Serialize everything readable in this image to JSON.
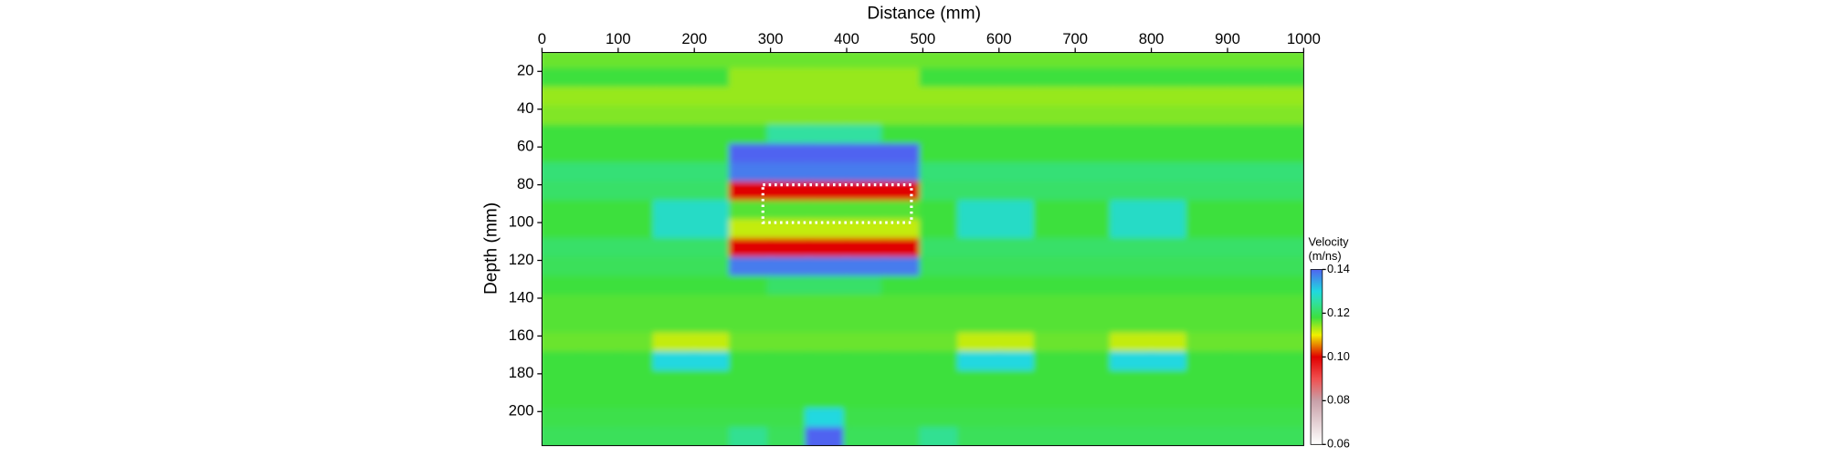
{
  "chart_data": {
    "type": "heatmap",
    "xlabel": "Distance (mm)",
    "ylabel": "Depth (mm)",
    "x": [
      25,
      75,
      125,
      175,
      225,
      275,
      325,
      375,
      425,
      475,
      525,
      575,
      625,
      675,
      725,
      775,
      825,
      875,
      925,
      975
    ],
    "y": [
      15,
      25,
      35,
      45,
      55,
      65,
      75,
      85,
      95,
      105,
      115,
      125,
      135,
      145,
      155,
      165,
      175,
      185,
      195,
      205,
      215
    ],
    "z": [
      [
        0.116,
        0.116,
        0.116,
        0.116,
        0.116,
        0.116,
        0.116,
        0.116,
        0.116,
        0.116,
        0.116,
        0.116,
        0.116,
        0.116,
        0.116,
        0.116,
        0.116,
        0.116,
        0.116,
        0.116
      ],
      [
        0.118,
        0.118,
        0.118,
        0.118,
        0.118,
        0.114,
        0.114,
        0.114,
        0.114,
        0.114,
        0.118,
        0.118,
        0.118,
        0.118,
        0.118,
        0.118,
        0.118,
        0.118,
        0.118,
        0.118
      ],
      [
        0.114,
        0.114,
        0.114,
        0.114,
        0.114,
        0.114,
        0.114,
        0.114,
        0.114,
        0.114,
        0.114,
        0.114,
        0.114,
        0.114,
        0.114,
        0.114,
        0.114,
        0.114,
        0.114,
        0.114
      ],
      [
        0.115,
        0.115,
        0.115,
        0.115,
        0.115,
        0.115,
        0.115,
        0.115,
        0.115,
        0.115,
        0.115,
        0.115,
        0.115,
        0.115,
        0.115,
        0.115,
        0.115,
        0.115,
        0.115,
        0.115
      ],
      [
        0.118,
        0.118,
        0.118,
        0.118,
        0.118,
        0.118,
        0.125,
        0.125,
        0.125,
        0.118,
        0.118,
        0.118,
        0.118,
        0.118,
        0.118,
        0.118,
        0.118,
        0.118,
        0.118,
        0.118
      ],
      [
        0.118,
        0.118,
        0.118,
        0.118,
        0.118,
        0.14,
        0.14,
        0.14,
        0.14,
        0.14,
        0.118,
        0.118,
        0.118,
        0.118,
        0.118,
        0.118,
        0.118,
        0.118,
        0.118,
        0.118
      ],
      [
        0.122,
        0.122,
        0.122,
        0.122,
        0.122,
        0.138,
        0.138,
        0.138,
        0.138,
        0.138,
        0.122,
        0.122,
        0.122,
        0.122,
        0.122,
        0.122,
        0.122,
        0.122,
        0.122,
        0.122
      ],
      [
        0.121,
        0.121,
        0.121,
        0.121,
        0.121,
        0.1,
        0.1,
        0.1,
        0.1,
        0.1,
        0.121,
        0.121,
        0.121,
        0.121,
        0.121,
        0.121,
        0.121,
        0.121,
        0.121,
        0.121
      ],
      [
        0.118,
        0.118,
        0.118,
        0.128,
        0.128,
        0.117,
        0.117,
        0.117,
        0.117,
        0.117,
        0.118,
        0.128,
        0.128,
        0.118,
        0.118,
        0.128,
        0.128,
        0.118,
        0.118,
        0.118
      ],
      [
        0.118,
        0.118,
        0.118,
        0.128,
        0.128,
        0.112,
        0.112,
        0.112,
        0.112,
        0.112,
        0.118,
        0.128,
        0.128,
        0.118,
        0.118,
        0.128,
        0.128,
        0.118,
        0.118,
        0.118
      ],
      [
        0.121,
        0.121,
        0.121,
        0.121,
        0.121,
        0.1,
        0.1,
        0.1,
        0.1,
        0.1,
        0.121,
        0.121,
        0.121,
        0.121,
        0.121,
        0.121,
        0.121,
        0.121,
        0.121,
        0.121
      ],
      [
        0.12,
        0.12,
        0.12,
        0.12,
        0.12,
        0.138,
        0.138,
        0.138,
        0.138,
        0.138,
        0.12,
        0.12,
        0.12,
        0.12,
        0.12,
        0.12,
        0.12,
        0.12,
        0.12,
        0.12
      ],
      [
        0.118,
        0.118,
        0.118,
        0.118,
        0.118,
        0.118,
        0.121,
        0.121,
        0.121,
        0.118,
        0.118,
        0.118,
        0.118,
        0.118,
        0.118,
        0.118,
        0.118,
        0.118,
        0.118,
        0.118
      ],
      [
        0.117,
        0.117,
        0.117,
        0.117,
        0.117,
        0.117,
        0.117,
        0.117,
        0.117,
        0.117,
        0.117,
        0.117,
        0.117,
        0.117,
        0.117,
        0.117,
        0.117,
        0.117,
        0.117,
        0.117
      ],
      [
        0.117,
        0.117,
        0.117,
        0.117,
        0.117,
        0.117,
        0.117,
        0.117,
        0.117,
        0.117,
        0.117,
        0.117,
        0.117,
        0.117,
        0.117,
        0.117,
        0.117,
        0.117,
        0.117,
        0.117
      ],
      [
        0.116,
        0.116,
        0.116,
        0.112,
        0.112,
        0.116,
        0.116,
        0.116,
        0.116,
        0.116,
        0.116,
        0.112,
        0.112,
        0.116,
        0.116,
        0.112,
        0.112,
        0.116,
        0.116,
        0.116
      ],
      [
        0.118,
        0.118,
        0.118,
        0.13,
        0.13,
        0.118,
        0.118,
        0.118,
        0.118,
        0.118,
        0.118,
        0.13,
        0.13,
        0.118,
        0.118,
        0.13,
        0.13,
        0.118,
        0.118,
        0.118
      ],
      [
        0.118,
        0.118,
        0.118,
        0.118,
        0.118,
        0.118,
        0.118,
        0.118,
        0.118,
        0.118,
        0.118,
        0.118,
        0.118,
        0.118,
        0.118,
        0.118,
        0.118,
        0.118,
        0.118,
        0.118
      ],
      [
        0.118,
        0.118,
        0.118,
        0.118,
        0.118,
        0.118,
        0.118,
        0.118,
        0.118,
        0.118,
        0.118,
        0.118,
        0.118,
        0.118,
        0.118,
        0.118,
        0.118,
        0.118,
        0.118,
        0.118
      ],
      [
        0.119,
        0.119,
        0.119,
        0.119,
        0.119,
        0.119,
        0.119,
        0.13,
        0.119,
        0.119,
        0.119,
        0.119,
        0.119,
        0.119,
        0.119,
        0.119,
        0.119,
        0.119,
        0.119,
        0.119
      ],
      [
        0.12,
        0.12,
        0.12,
        0.12,
        0.12,
        0.124,
        0.12,
        0.14,
        0.12,
        0.12,
        0.124,
        0.12,
        0.12,
        0.12,
        0.12,
        0.12,
        0.12,
        0.12,
        0.12,
        0.12
      ]
    ],
    "xlim": [
      0,
      1000
    ],
    "xticks": [
      0,
      100,
      200,
      300,
      400,
      500,
      600,
      700,
      800,
      900,
      1000
    ],
    "ylim": [
      10,
      218
    ],
    "yticks": [
      20,
      40,
      60,
      80,
      100,
      120,
      140,
      160,
      180,
      200
    ],
    "annotation_box": {
      "x": [
        290,
        485
      ],
      "y": [
        80,
        100
      ],
      "color": "#ffffff"
    },
    "colorbar_title": "Velocity",
    "colorbar_unit": "(m/ns)",
    "zlim": [
      0.06,
      0.14
    ],
    "zticks": [
      0.06,
      0.08,
      {
        "value": 0.1,
        "label": "0.10"
      },
      0.12,
      0.14
    ],
    "colorscale": [
      [
        0.06,
        "#ffffff"
      ],
      [
        0.08,
        "#c8a0a8"
      ],
      [
        0.09,
        "#f05050"
      ],
      [
        0.1,
        "#e00000"
      ],
      [
        0.11,
        "#f0f000"
      ],
      [
        0.118,
        "#3ee03e"
      ],
      [
        0.125,
        "#30e0a0"
      ],
      [
        0.13,
        "#20d8e0"
      ],
      [
        0.14,
        "#5064f0"
      ]
    ]
  }
}
